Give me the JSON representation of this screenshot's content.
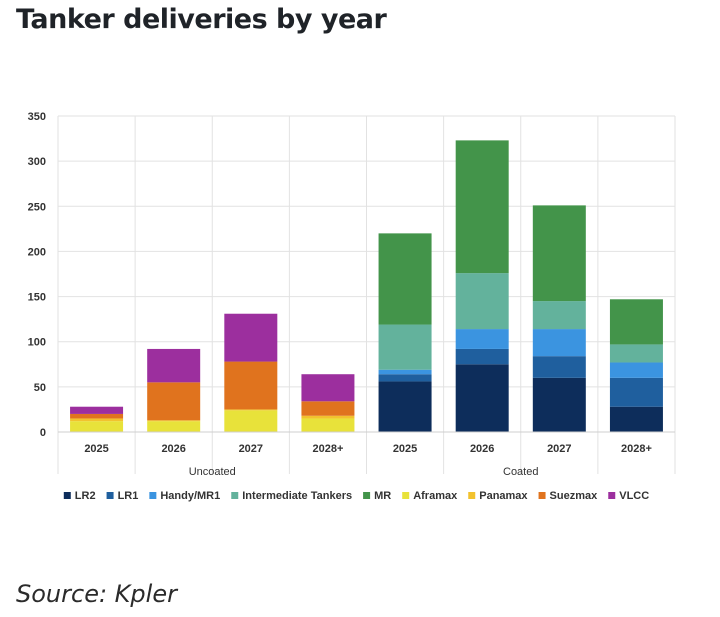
{
  "page": {
    "title": "Tanker deliveries by year",
    "source": "Source: Kpler"
  },
  "chart_data": {
    "type": "bar",
    "stacked": true,
    "title": "Tanker deliveries by year",
    "xlabel": "",
    "ylabel": "",
    "ylim": [
      0,
      350
    ],
    "yticks": [
      0,
      50,
      100,
      150,
      200,
      250,
      300,
      350
    ],
    "grid": true,
    "legend_position": "bottom",
    "categories": [
      "2025",
      "2026",
      "2027",
      "2028+",
      "2025",
      "2026",
      "2027",
      "2028+"
    ],
    "groups": [
      {
        "label": "Uncoated",
        "count": 4
      },
      {
        "label": "Coated",
        "count": 4
      }
    ],
    "series": [
      {
        "name": "LR2",
        "color": "#0d2d5b",
        "values": [
          0,
          0,
          0,
          0,
          56,
          75,
          60,
          28
        ]
      },
      {
        "name": "LR1",
        "color": "#1f5f9e",
        "values": [
          0,
          0,
          0,
          0,
          8,
          17,
          24,
          32
        ]
      },
      {
        "name": "Handy/MR1",
        "color": "#3b94e0",
        "values": [
          0,
          0,
          0,
          0,
          5,
          22,
          30,
          17
        ]
      },
      {
        "name": "Intermediate Tankers",
        "color": "#63b29c",
        "values": [
          0,
          0,
          0,
          0,
          50,
          62,
          31,
          20
        ]
      },
      {
        "name": "MR",
        "color": "#43944a",
        "values": [
          0,
          0,
          0,
          0,
          101,
          147,
          106,
          50
        ]
      },
      {
        "name": "Aframax",
        "color": "#e8e23a",
        "values": [
          12,
          12,
          24,
          15,
          0,
          0,
          0,
          0
        ]
      },
      {
        "name": "Panamax",
        "color": "#f2c22e",
        "values": [
          3,
          1,
          1,
          3,
          0,
          0,
          0,
          0
        ]
      },
      {
        "name": "Suezmax",
        "color": "#e0731e",
        "values": [
          5,
          42,
          53,
          16,
          0,
          0,
          0,
          0
        ]
      },
      {
        "name": "VLCC",
        "color": "#9c2f9e",
        "values": [
          8,
          37,
          53,
          30,
          0,
          0,
          0,
          0
        ]
      }
    ]
  }
}
